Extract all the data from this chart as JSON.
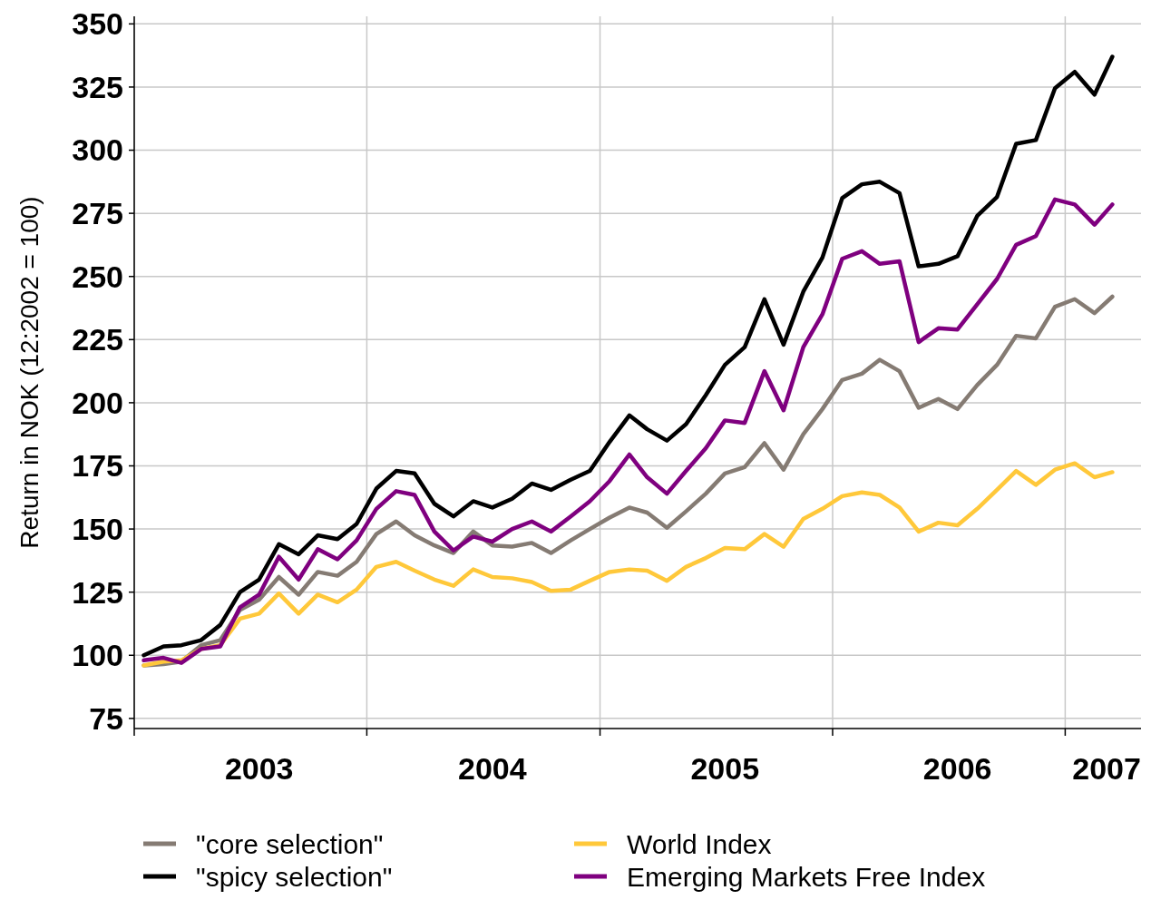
{
  "chart_data": {
    "type": "line",
    "ylabel": "Return in NOK (12:2002 = 100)",
    "x": [
      "2003-01",
      "2003-02",
      "2003-03",
      "2003-04",
      "2003-05",
      "2003-06",
      "2003-07",
      "2003-08",
      "2003-09",
      "2003-10",
      "2003-11",
      "2003-12",
      "2004-01",
      "2004-02",
      "2004-03",
      "2004-04",
      "2004-05",
      "2004-06",
      "2004-07",
      "2004-08",
      "2004-09",
      "2004-10",
      "2004-11",
      "2004-12",
      "2005-01",
      "2005-02",
      "2005-03",
      "2005-04",
      "2005-05",
      "2005-06",
      "2005-07",
      "2005-08",
      "2005-09",
      "2005-10",
      "2005-11",
      "2005-12",
      "2006-01",
      "2006-02",
      "2006-03",
      "2006-04",
      "2006-05",
      "2006-06",
      "2006-07",
      "2006-08",
      "2006-09",
      "2006-10",
      "2006-11",
      "2006-12",
      "2007-01",
      "2007-02",
      "2007-03"
    ],
    "series": [
      {
        "name": "\"core selection\"",
        "color": "#857b73",
        "values": [
          96,
          96.5,
          97.5,
          104,
          106,
          118,
          122,
          131,
          124,
          133,
          131.5,
          137,
          148,
          153,
          147.5,
          143.5,
          140.5,
          149,
          143.5,
          143,
          144.5,
          140.5,
          145.5,
          150,
          154.5,
          158.5,
          156.5,
          150.5,
          157,
          164,
          172,
          174.5,
          184,
          173.5,
          187.5,
          197.5,
          209,
          211.5,
          217,
          212.5,
          198,
          201.5,
          197.5,
          207,
          215,
          226.5,
          225.5,
          238,
          241,
          235.5,
          242
        ]
      },
      {
        "name": "\"spicy selection\"",
        "color": "#000000",
        "values": [
          100,
          103.5,
          104,
          106,
          112,
          125,
          130,
          144,
          140,
          147.5,
          146,
          152,
          166,
          173,
          172,
          160,
          155,
          161,
          158.5,
          162,
          168,
          165.5,
          169.5,
          173,
          184.5,
          195,
          189.5,
          185,
          191.5,
          203,
          215,
          222,
          241,
          223,
          244,
          257.5,
          281,
          286.5,
          287.5,
          283,
          254,
          255,
          258,
          274,
          281.5,
          302.5,
          304,
          324.5,
          331,
          322,
          337
        ]
      },
      {
        "name": "World Index",
        "color": "#ffc83a",
        "values": [
          96,
          97.5,
          98,
          102.5,
          104,
          114.5,
          116.5,
          124.5,
          116.5,
          124,
          121,
          126,
          135,
          137,
          133.5,
          130,
          127.5,
          134,
          131,
          130.5,
          129,
          125.5,
          126,
          129.5,
          133,
          134,
          133.5,
          129.5,
          135,
          138.5,
          142.5,
          142,
          148,
          143,
          154,
          158,
          163,
          164.5,
          163.5,
          158.5,
          149,
          152.5,
          151.5,
          158,
          165.5,
          173,
          167.5,
          173.5,
          176,
          170.5,
          172.5
        ]
      },
      {
        "name": "Emerging Markets Free Index",
        "color": "#7f007f",
        "values": [
          98,
          99,
          97,
          102.5,
          103.5,
          119,
          124,
          139,
          130,
          142,
          138,
          145.5,
          158,
          165,
          163.5,
          149,
          141.5,
          147,
          145,
          150,
          153,
          149,
          155,
          161,
          169,
          179.5,
          170.5,
          164,
          173,
          182,
          193,
          192,
          212.5,
          197,
          222,
          235,
          257,
          260,
          255,
          256,
          224,
          229.5,
          229,
          239,
          249,
          262.5,
          266,
          280.5,
          278.5,
          270.5,
          278.5
        ]
      }
    ],
    "xlim": [
      "2002-12-17",
      "2007-04-15"
    ],
    "xticks": [
      {
        "value": "2002-12-17",
        "label": null
      },
      {
        "value": "2003-07-01",
        "label": "2003"
      },
      {
        "value": "2003-12-17",
        "label": null
      },
      {
        "value": "2004-07-01",
        "label": "2004"
      },
      {
        "value": "2004-12-17",
        "label": null
      },
      {
        "value": "2005-07-01",
        "label": "2005"
      },
      {
        "value": "2005-12-17",
        "label": null
      },
      {
        "value": "2006-07-01",
        "label": "2006"
      },
      {
        "value": "2006-12-17",
        "label": null
      },
      {
        "value": "2007-02-20",
        "label": "2007"
      }
    ],
    "ylim": [
      71,
      353
    ],
    "yticks": [
      75,
      100,
      125,
      150,
      175,
      200,
      225,
      250,
      275,
      300,
      325,
      350
    ],
    "grid": true,
    "legend": "bottom",
    "line_style": "solid",
    "marker": "none"
  }
}
